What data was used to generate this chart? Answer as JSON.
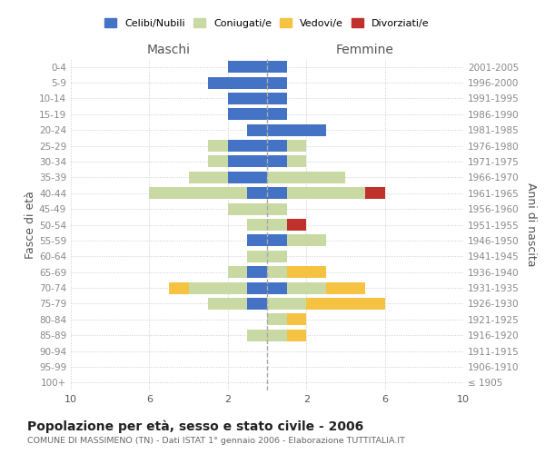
{
  "age_groups": [
    "0-4",
    "5-9",
    "10-14",
    "15-19",
    "20-24",
    "25-29",
    "30-34",
    "35-39",
    "40-44",
    "45-49",
    "50-54",
    "55-59",
    "60-64",
    "65-69",
    "70-74",
    "75-79",
    "80-84",
    "85-89",
    "90-94",
    "95-99",
    "100+"
  ],
  "birth_years": [
    "2001-2005",
    "1996-2000",
    "1991-1995",
    "1986-1990",
    "1981-1985",
    "1976-1980",
    "1971-1975",
    "1966-1970",
    "1961-1965",
    "1956-1960",
    "1951-1955",
    "1946-1950",
    "1941-1945",
    "1936-1940",
    "1931-1935",
    "1926-1930",
    "1921-1925",
    "1916-1920",
    "1911-1915",
    "1906-1910",
    "≤ 1905"
  ],
  "male": {
    "celibi": [
      2,
      3,
      2,
      2,
      1,
      2,
      2,
      2,
      1,
      0,
      0,
      1,
      0,
      1,
      1,
      1,
      0,
      0,
      0,
      0,
      0
    ],
    "coniugati": [
      0,
      0,
      0,
      0,
      0,
      1,
      1,
      2,
      5,
      2,
      1,
      0,
      1,
      1,
      3,
      2,
      0,
      1,
      0,
      0,
      0
    ],
    "vedovi": [
      0,
      0,
      0,
      0,
      0,
      0,
      0,
      0,
      0,
      0,
      0,
      0,
      0,
      0,
      1,
      0,
      0,
      0,
      0,
      0,
      0
    ],
    "divorziati": [
      0,
      0,
      0,
      0,
      0,
      0,
      0,
      0,
      0,
      0,
      0,
      0,
      0,
      0,
      0,
      0,
      0,
      0,
      0,
      0,
      0
    ]
  },
  "female": {
    "nubili": [
      1,
      1,
      1,
      1,
      3,
      1,
      1,
      0,
      1,
      0,
      0,
      1,
      0,
      0,
      1,
      0,
      0,
      0,
      0,
      0,
      0
    ],
    "coniugate": [
      0,
      0,
      0,
      0,
      0,
      1,
      1,
      4,
      4,
      1,
      1,
      2,
      1,
      1,
      2,
      2,
      1,
      1,
      0,
      0,
      0
    ],
    "vedove": [
      0,
      0,
      0,
      0,
      0,
      0,
      0,
      0,
      0,
      0,
      0,
      0,
      0,
      2,
      2,
      4,
      1,
      1,
      0,
      0,
      0
    ],
    "divorziate": [
      0,
      0,
      0,
      0,
      0,
      0,
      0,
      0,
      1,
      0,
      1,
      0,
      0,
      0,
      0,
      0,
      0,
      0,
      0,
      0,
      0
    ]
  },
  "colors": {
    "celibi_nubili": "#4472c4",
    "coniugati": "#c8d9a4",
    "vedovi": "#f5c242",
    "divorziati": "#c0312b"
  },
  "xlim": 10,
  "title": "Popolazione per età, sesso e stato civile - 2006",
  "subtitle": "COMUNE DI MASSIMENO (TN) - Dati ISTAT 1° gennaio 2006 - Elaborazione TUTTITALIA.IT",
  "ylabel_left": "Fasce di età",
  "ylabel_right": "Anni di nascita",
  "xlabel_left": "Maschi",
  "xlabel_right": "Femmine"
}
